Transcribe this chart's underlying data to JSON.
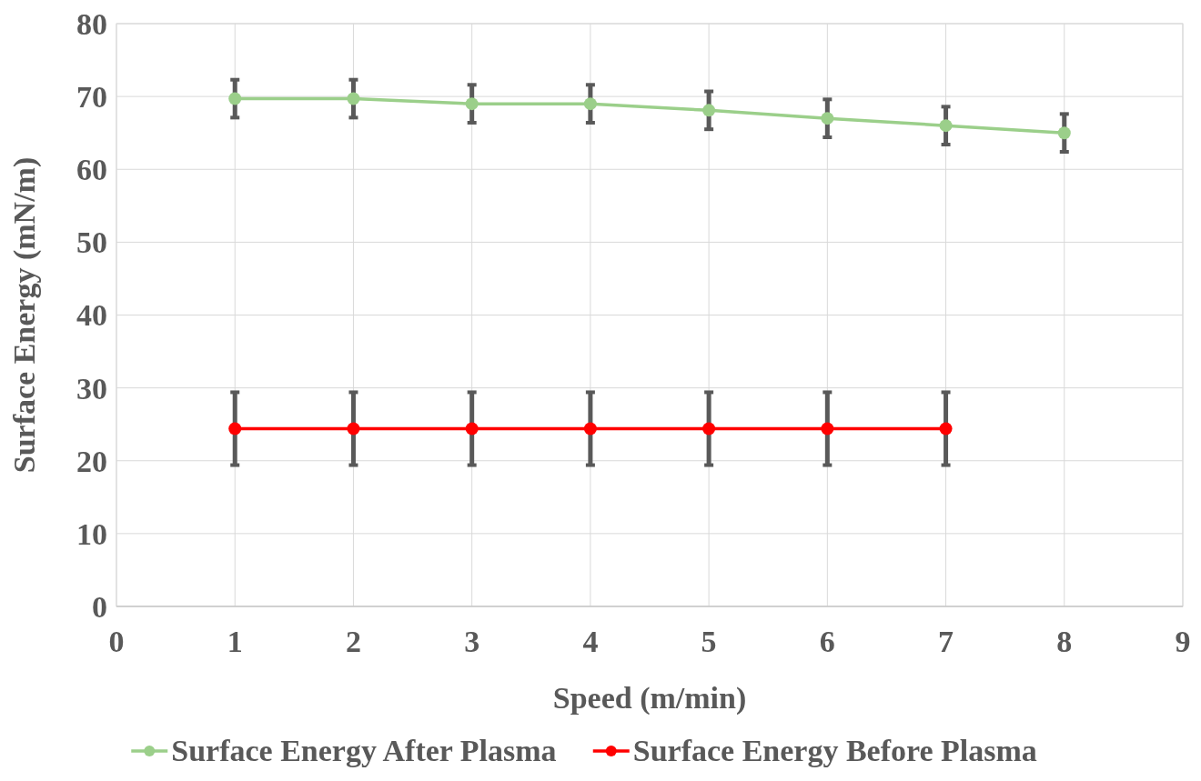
{
  "chart_data": {
    "type": "line",
    "xlabel": "Speed (m/min)",
    "ylabel": "Surface Energy (mN/m)",
    "xlim": [
      0,
      9
    ],
    "xticks": [
      0,
      1,
      2,
      3,
      4,
      5,
      6,
      7,
      8,
      9
    ],
    "ylim": [
      0,
      80
    ],
    "yticks": [
      0,
      10,
      20,
      30,
      40,
      50,
      60,
      70,
      80
    ],
    "grid": true,
    "legend": "bottom",
    "marker": "circle",
    "line_style": "solid",
    "series": [
      {
        "name": "Surface Energy After Plasma",
        "color": "#9bcf8a",
        "x": [
          1,
          2,
          3,
          4,
          5,
          6,
          7,
          8
        ],
        "values": [
          69.7,
          69.7,
          69.0,
          69.0,
          68.1,
          67.0,
          66.0,
          65.0
        ],
        "errors": [
          2.6,
          2.6,
          2.6,
          2.6,
          2.6,
          2.6,
          2.6,
          2.6
        ]
      },
      {
        "name": "Surface Energy Before Plasma",
        "color": "#ff0000",
        "x": [
          1,
          2,
          3,
          4,
          5,
          6,
          7
        ],
        "values": [
          24.4,
          24.4,
          24.4,
          24.4,
          24.4,
          24.4,
          24.4
        ],
        "errors": [
          5,
          5,
          5,
          5,
          5,
          5,
          5
        ]
      }
    ]
  }
}
